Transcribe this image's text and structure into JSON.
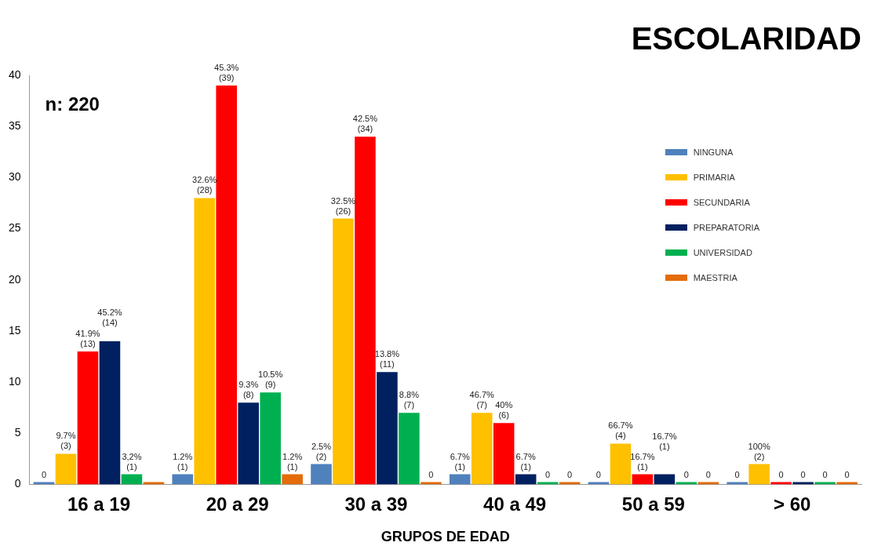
{
  "chart_data": {
    "type": "bar",
    "title": "ESCOLARIDAD",
    "xlabel": "GRUPOS DE EDAD",
    "annotations": [
      "n: 220"
    ],
    "categories": [
      "16 a 19",
      "20 a 29",
      "30 a 39",
      "40 a 49",
      "50 a 59",
      "> 60"
    ],
    "series": [
      {
        "name": "NINGUNA",
        "color": "#4f81bd",
        "values": [
          0,
          1,
          2,
          1,
          0,
          0
        ],
        "value_labels": [
          "0",
          "1.2% (1)",
          "2.5% (2)",
          "6.7% (1)",
          "0",
          "0"
        ]
      },
      {
        "name": "PRIMARIA",
        "color": "#ffc000",
        "values": [
          3,
          28,
          26,
          7,
          4,
          2
        ],
        "value_labels": [
          "9.7% (3)",
          "32.6% (28)",
          "32.5% (26)",
          "46.7% (7)",
          "66.7% (4)",
          "100% (2)"
        ]
      },
      {
        "name": "SECUNDARIA",
        "color": "#ff0000",
        "values": [
          13,
          39,
          34,
          6,
          1,
          0
        ],
        "value_labels": [
          "41.9% (13)",
          "45.3% (39)",
          "42.5% (34)",
          "40% (6)",
          "16.7% (1)",
          "0"
        ]
      },
      {
        "name": "PREPARATORIA",
        "color": "#002060",
        "values": [
          14,
          8,
          11,
          1,
          1,
          0
        ],
        "value_labels": [
          "45.2% (14)",
          "9.3% (8)",
          "13.8% (11)",
          "6.7% (1)",
          "16.7% (1)",
          "0"
        ]
      },
      {
        "name": "UNIVERSIDAD",
        "color": "#00b050",
        "values": [
          1,
          9,
          7,
          0,
          0,
          0
        ],
        "value_labels": [
          "3,2% (1)",
          "10.5% (9)",
          "8.8% (7)",
          "0",
          "0",
          "0"
        ]
      },
      {
        "name": "MAESTRIA",
        "color": "#e46c0a",
        "values": [
          0,
          1,
          0,
          0,
          0,
          0
        ],
        "value_labels": [
          null,
          "1.2% (1)",
          "0",
          "0",
          "0",
          "0"
        ]
      }
    ],
    "ylim": [
      0,
      40
    ],
    "yticks": [
      0,
      5,
      10,
      15,
      20,
      25,
      30,
      35,
      40
    ],
    "grid": false,
    "legend": "top right"
  }
}
